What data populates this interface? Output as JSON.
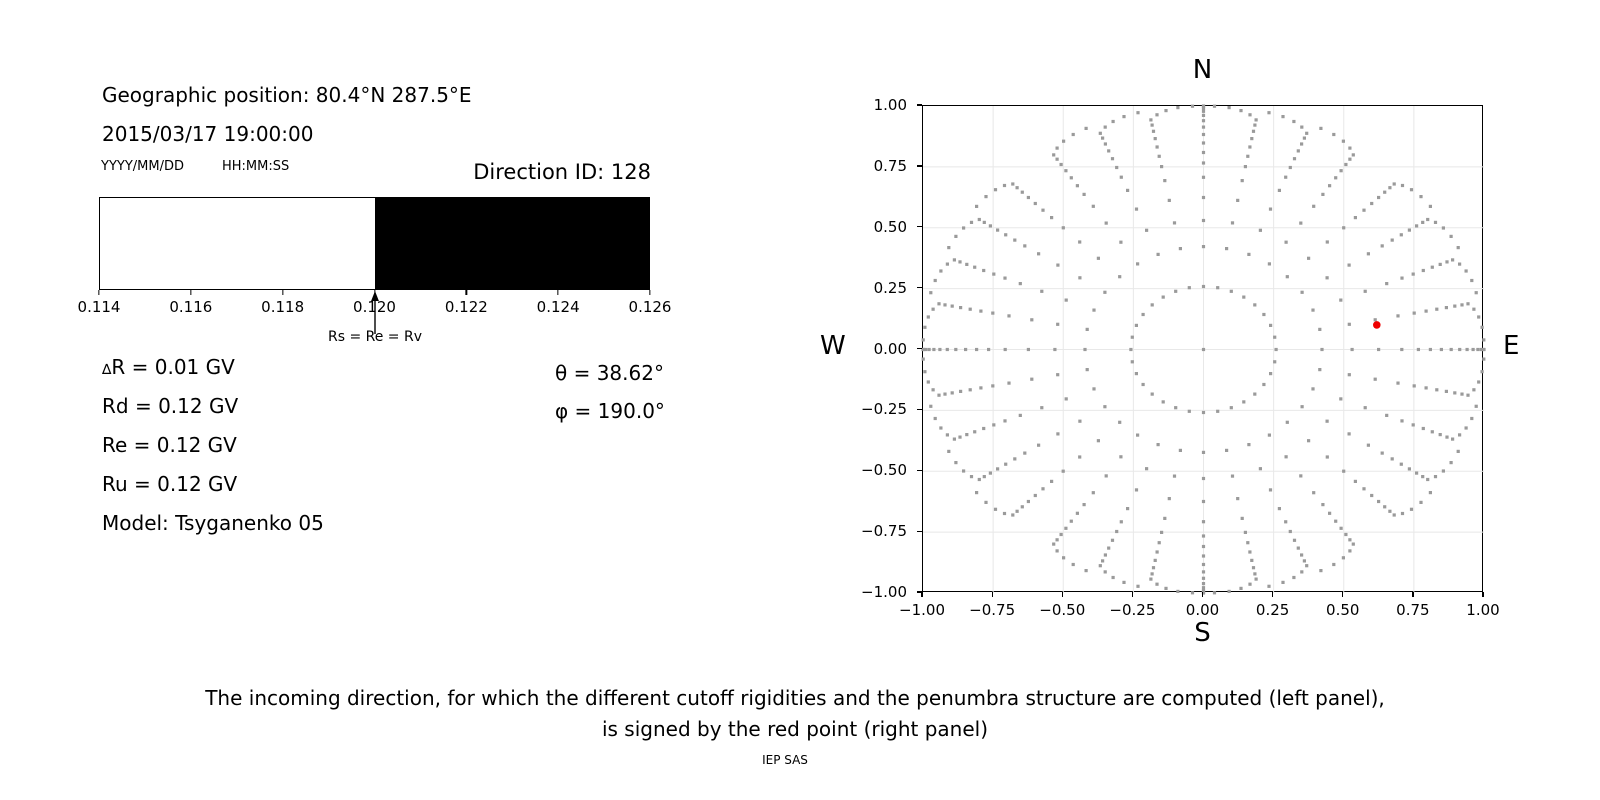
{
  "left_panel": {
    "geo_position": "Geographic position: 80.4°N 287.5°E",
    "datetime": "2015/03/17 19:00:00",
    "date_format_hint": "YYYY/MM/DD",
    "time_format_hint": "HH:MM:SS",
    "direction_id": "Direction ID: 128",
    "arrow_label": "Rs = Re = Rv",
    "params": {
      "delta_prefix": "∆",
      "delta_rest": "R = 0.01 GV",
      "lines": [
        "Rd = 0.12 GV",
        "Re = 0.12 GV",
        "Ru = 0.12 GV",
        "Model: Tsyganenko 05"
      ]
    },
    "angles": {
      "theta": "θ = 38.62°",
      "phi": "φ = 190.0°"
    }
  },
  "right_panel": {
    "title": "N",
    "xlabel": "S",
    "west": "W",
    "east": "E"
  },
  "caption": {
    "line1": "The incoming direction, for which the different cutoff rigidities and the penumbra structure are computed (left panel),",
    "line2": "is signed by the red point (right panel)",
    "credit": "IEP SAS"
  },
  "chart_data": [
    {
      "type": "area",
      "name": "penumbra-structure-band",
      "xlim": [
        0.114,
        0.126
      ],
      "tick_labels": [
        "0.114",
        "0.116",
        "0.118",
        "0.120",
        "0.122",
        "0.124",
        "0.126"
      ],
      "allowed_band": {
        "from": 0.114,
        "to": 0.12,
        "color": "#ffffff"
      },
      "forbidden_band": {
        "from": 0.12,
        "to": 0.126,
        "color": "#000000"
      },
      "arrow_x": 0.12,
      "arrow_label": "Rs = Re = Rv",
      "cutoffs_gv": {
        "delta_r": 0.01,
        "rd": 0.12,
        "re": 0.12,
        "ru": 0.12
      },
      "model": "Tsyganenko 05"
    },
    {
      "type": "scatter",
      "name": "incoming-directions-grid",
      "title": "N",
      "xlabel": "S",
      "left_label": "W",
      "right_label": "E",
      "xlim": [
        -1,
        1
      ],
      "ylim": [
        -1,
        1
      ],
      "grid": true,
      "grid_color": "#e8e8e8",
      "tick_labels": [
        "−1.00",
        "−0.75",
        "−0.50",
        "−0.25",
        "0.00",
        "0.25",
        "0.50",
        "0.75",
        "1.00"
      ],
      "directions_grid": {
        "azimuth_count": 32,
        "azimuth_step_deg": 11.25,
        "zenith_angles_deg": [
          15,
          25,
          32,
          38.62,
          45,
          50,
          54,
          58,
          62,
          66,
          70,
          74,
          78,
          82,
          86,
          90
        ],
        "tip_twist_deg": [
          1.5,
          3.5,
          6,
          9
        ],
        "includes_vertical_center_point": true,
        "projection": "r = sin(zenith)",
        "marker_color": "#9a9a9a",
        "marker_size_px": 3.2
      },
      "selected_direction": {
        "id": 128,
        "theta_deg": 38.62,
        "phi_deg": 190.0,
        "x": 0.618,
        "y": 0.101,
        "color": "#ee0000",
        "radius_px": 3.8
      }
    }
  ]
}
